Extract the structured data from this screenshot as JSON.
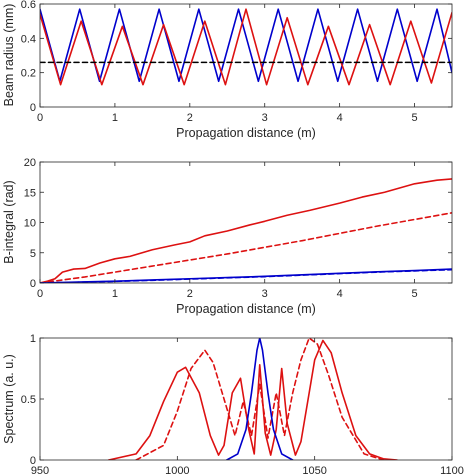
{
  "chart_data": [
    {
      "type": "line",
      "xlabel": "Propagation distance (m)",
      "ylabel": "Beam radius (mm)",
      "xlim": [
        0,
        5.5
      ],
      "ylim": [
        0,
        0.6
      ],
      "xticks": [
        0,
        1,
        2,
        3,
        4,
        5
      ],
      "yticks": [
        0,
        0.2,
        0.4,
        0.6
      ],
      "xticklabels": [
        "0",
        "1",
        "2",
        "3",
        "4",
        "5"
      ],
      "yticklabels": [
        "0",
        "0.2",
        "0.4",
        "0.6"
      ],
      "grid": false,
      "series": [
        {
          "color": "#0000cc",
          "style": "solid",
          "x": [
            0,
            0.265,
            0.53,
            0.795,
            1.06,
            1.325,
            1.59,
            1.855,
            2.12,
            2.385,
            2.65,
            2.915,
            3.18,
            3.445,
            3.71,
            3.975,
            4.24,
            4.505,
            4.77,
            5.035,
            5.3,
            5.5
          ],
          "y": [
            0.57,
            0.15,
            0.57,
            0.15,
            0.57,
            0.15,
            0.57,
            0.15,
            0.57,
            0.15,
            0.57,
            0.15,
            0.57,
            0.15,
            0.57,
            0.15,
            0.57,
            0.15,
            0.57,
            0.15,
            0.57,
            0.2
          ]
        },
        {
          "color": "#dd1111",
          "style": "solid",
          "x": [
            0,
            0.275,
            0.55,
            0.825,
            1.1,
            1.375,
            1.65,
            1.925,
            2.2,
            2.475,
            2.75,
            3.025,
            3.3,
            3.575,
            3.85,
            4.125,
            4.4,
            4.675,
            4.95,
            5.225,
            5.5
          ],
          "y": [
            0.54,
            0.13,
            0.5,
            0.13,
            0.47,
            0.13,
            0.48,
            0.13,
            0.5,
            0.13,
            0.57,
            0.13,
            0.52,
            0.13,
            0.47,
            0.13,
            0.48,
            0.13,
            0.5,
            0.14,
            0.55
          ]
        },
        {
          "color": "#000000",
          "style": "dashed",
          "x": [
            0,
            5.5
          ],
          "y": [
            0.26,
            0.26
          ]
        }
      ]
    },
    {
      "type": "line",
      "xlabel": "Propagation distance (m)",
      "ylabel": "B-integral (rad)",
      "xlim": [
        0,
        5.5
      ],
      "ylim": [
        0,
        20
      ],
      "xticks": [
        0,
        1,
        2,
        3,
        4,
        5
      ],
      "yticks": [
        0,
        5,
        10,
        15,
        20
      ],
      "xticklabels": [
        "0",
        "1",
        "2",
        "3",
        "4",
        "5"
      ],
      "yticklabels": [
        "0",
        "5",
        "10",
        "15",
        "20"
      ],
      "grid": false,
      "series": [
        {
          "color": "#dd1111",
          "style": "solid",
          "x": [
            0,
            0.1,
            0.2,
            0.3,
            0.45,
            0.6,
            0.8,
            1.0,
            1.2,
            1.5,
            1.8,
            2.0,
            2.2,
            2.5,
            2.8,
            3.0,
            3.3,
            3.6,
            4.0,
            4.3,
            4.6,
            5.0,
            5.3,
            5.5
          ],
          "y": [
            0,
            0.3,
            0.7,
            1.8,
            2.3,
            2.4,
            3.3,
            4.0,
            4.4,
            5.5,
            6.3,
            6.8,
            7.8,
            8.6,
            9.6,
            10.2,
            11.2,
            12.0,
            13.2,
            14.2,
            15.0,
            16.4,
            17.0,
            17.2
          ]
        },
        {
          "color": "#dd1111",
          "style": "dashed",
          "x": [
            0,
            0.3,
            0.6,
            1.0,
            1.5,
            2.0,
            2.5,
            3.0,
            3.5,
            4.0,
            4.5,
            5.0,
            5.5
          ],
          "y": [
            0,
            0.5,
            1.0,
            1.8,
            2.8,
            3.8,
            4.8,
            5.9,
            7.0,
            8.2,
            9.4,
            10.5,
            11.6
          ]
        },
        {
          "color": "#0000cc",
          "style": "solid",
          "x": [
            0,
            0.5,
            1.0,
            1.5,
            2.0,
            2.5,
            3.0,
            3.5,
            4.0,
            4.5,
            5.0,
            5.5
          ],
          "y": [
            0,
            0.15,
            0.3,
            0.5,
            0.7,
            0.9,
            1.1,
            1.35,
            1.6,
            1.85,
            2.05,
            2.3
          ]
        },
        {
          "color": "#0000cc",
          "style": "dashed",
          "x": [
            0,
            0.5,
            1.0,
            1.5,
            2.0,
            2.5,
            3.0,
            3.5,
            4.0,
            4.5,
            5.0,
            5.5
          ],
          "y": [
            0,
            0.12,
            0.27,
            0.45,
            0.65,
            0.85,
            1.05,
            1.3,
            1.55,
            1.8,
            2.0,
            2.2
          ]
        }
      ]
    },
    {
      "type": "line",
      "xlabel": "",
      "ylabel": "Spectrum (a. u.)",
      "xlim": [
        950,
        1100
      ],
      "ylim": [
        0,
        1
      ],
      "xticks": [
        950,
        1000,
        1050,
        1100
      ],
      "yticks": [
        0,
        0.5,
        1
      ],
      "xticklabels": [
        "950",
        "1000",
        "1050",
        "1100"
      ],
      "yticklabels": [
        "0",
        "0.5",
        "1"
      ],
      "grid": false,
      "series": [
        {
          "color": "#dd1111",
          "style": "solid",
          "x": [
            975,
            985,
            990,
            995,
            1000,
            1003,
            1008,
            1012,
            1015,
            1017,
            1020,
            1023,
            1026,
            1028,
            1030,
            1032,
            1034,
            1036,
            1038,
            1040,
            1043,
            1045,
            1048,
            1050,
            1053,
            1056,
            1060,
            1065,
            1070,
            1075,
            1080
          ],
          "y": [
            0,
            0.05,
            0.2,
            0.48,
            0.72,
            0.76,
            0.55,
            0.2,
            0.04,
            0.12,
            0.55,
            0.67,
            0.25,
            0.05,
            0.78,
            0.22,
            0.04,
            0.25,
            0.75,
            0.3,
            0.04,
            0.15,
            0.55,
            0.82,
            0.98,
            0.88,
            0.55,
            0.2,
            0.05,
            0.01,
            0
          ]
        },
        {
          "color": "#dd1111",
          "style": "dashed",
          "x": [
            985,
            995,
            1000,
            1005,
            1010,
            1013,
            1017,
            1021,
            1024,
            1027,
            1030,
            1033,
            1036,
            1039,
            1042,
            1045,
            1048,
            1051,
            1055,
            1060,
            1068,
            1075
          ],
          "y": [
            0,
            0.12,
            0.4,
            0.75,
            0.9,
            0.8,
            0.5,
            0.2,
            0.48,
            0.2,
            0.62,
            0.18,
            0.55,
            0.2,
            0.55,
            0.82,
            1.0,
            0.95,
            0.7,
            0.35,
            0.05,
            0
          ]
        },
        {
          "color": "#0000cc",
          "style": "solid",
          "x": [
            1018,
            1022,
            1025,
            1027,
            1029,
            1030,
            1031,
            1033,
            1035,
            1038,
            1042
          ],
          "y": [
            0,
            0.05,
            0.25,
            0.55,
            0.9,
            1.0,
            0.9,
            0.55,
            0.25,
            0.05,
            0
          ]
        }
      ]
    }
  ]
}
